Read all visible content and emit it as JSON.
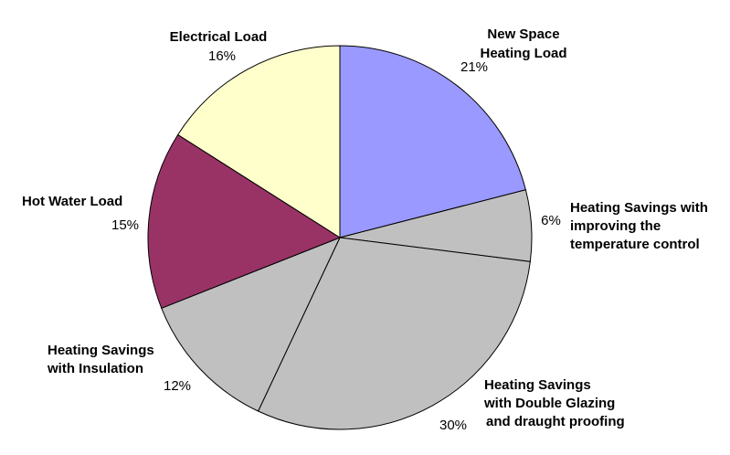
{
  "chart_data": {
    "type": "pie",
    "title": "",
    "slices": [
      {
        "label": [
          "New Space",
          "Heating Load"
        ],
        "pct_label": "21%",
        "value": 21,
        "color": "#9999ff"
      },
      {
        "label": [
          "Heating Savings with",
          "improving the",
          "temperature control"
        ],
        "pct_label": "6%",
        "value": 6,
        "color": "#c0c0c0"
      },
      {
        "label": [
          "Heating Savings",
          "with Double Glazing",
          "and draught proofing"
        ],
        "pct_label": "30%",
        "value": 30,
        "color": "#c0c0c0"
      },
      {
        "label": [
          "Heating Savings",
          "with Insulation"
        ],
        "pct_label": "12%",
        "value": 12,
        "color": "#c0c0c0"
      },
      {
        "label": [
          "Hot Water Load"
        ],
        "pct_label": "15%",
        "value": 15,
        "color": "#993366"
      },
      {
        "label": [
          "Electrical Load"
        ],
        "pct_label": "16%",
        "value": 16,
        "color": "#ffffcc"
      }
    ],
    "legend": "none"
  }
}
